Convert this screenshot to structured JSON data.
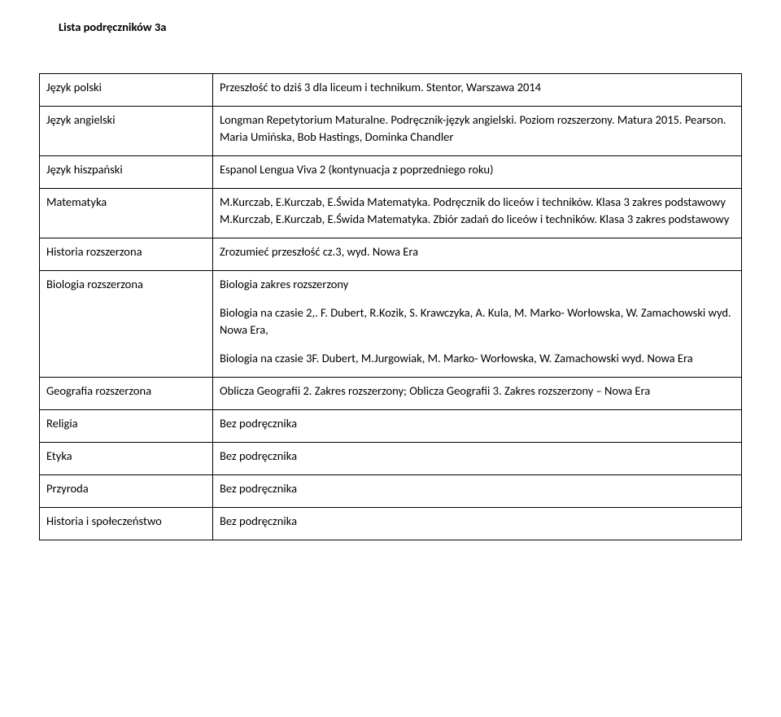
{
  "title": "Lista podręczników 3a",
  "rows": [
    {
      "subject": "Język polski",
      "content": [
        "Przeszłość to dziś 3 dla liceum i technikum. Stentor, Warszawa 2014"
      ]
    },
    {
      "subject": "Język angielski",
      "content": [
        "Longman Repetytorium Maturalne. Podręcznik-język angielski. Poziom rozszerzony. Matura 2015. Pearson. Maria Umińska, Bob Hastings, Dominka Chandler"
      ]
    },
    {
      "subject": "Język hiszpański",
      "content": [
        "Espanol Lengua Viva 2 (kontynuacja z poprzedniego roku)"
      ]
    },
    {
      "subject": "Matematyka",
      "content": [
        "M.Kurczab, E.Kurczab, E.Świda Matematyka. Podręcznik do liceów i techników. Klasa 3 zakres podstawowy\nM.Kurczab, E.Kurczab, E.Świda Matematyka. Zbiór zadań do liceów i techników. Klasa 3 zakres podstawowy"
      ]
    },
    {
      "subject": "Historia rozszerzona",
      "content": [
        "Zrozumieć przeszłość cz.3, wyd. Nowa Era"
      ]
    },
    {
      "subject": "Biologia rozszerzona",
      "content": [
        "Biologia zakres rozszerzony",
        "Biologia na czasie 2,. F. Dubert, R.Kozik, S. Krawczyka, A. Kula, M. Marko- Worłowska, W. Zamachowski wyd. Nowa Era,",
        "Biologia na czasie 3F. Dubert, M.Jurgowiak, M. Marko- Worłowska, W. Zamachowski wyd. Nowa Era"
      ]
    },
    {
      "subject": "Geografia rozszerzona",
      "content": [
        "Oblicza Geografii 2. Zakres rozszerzony; Oblicza Geografii 3. Zakres rozszerzony – Nowa Era"
      ]
    },
    {
      "subject": "Religia",
      "content": [
        "Bez podręcznika"
      ]
    },
    {
      "subject": "Etyka",
      "content": [
        "Bez podręcznika"
      ]
    },
    {
      "subject": "Przyroda",
      "content": [
        "Bez podręcznika"
      ]
    },
    {
      "subject": "Historia i społeczeństwo",
      "content": [
        "Bez podręcznika"
      ]
    }
  ]
}
